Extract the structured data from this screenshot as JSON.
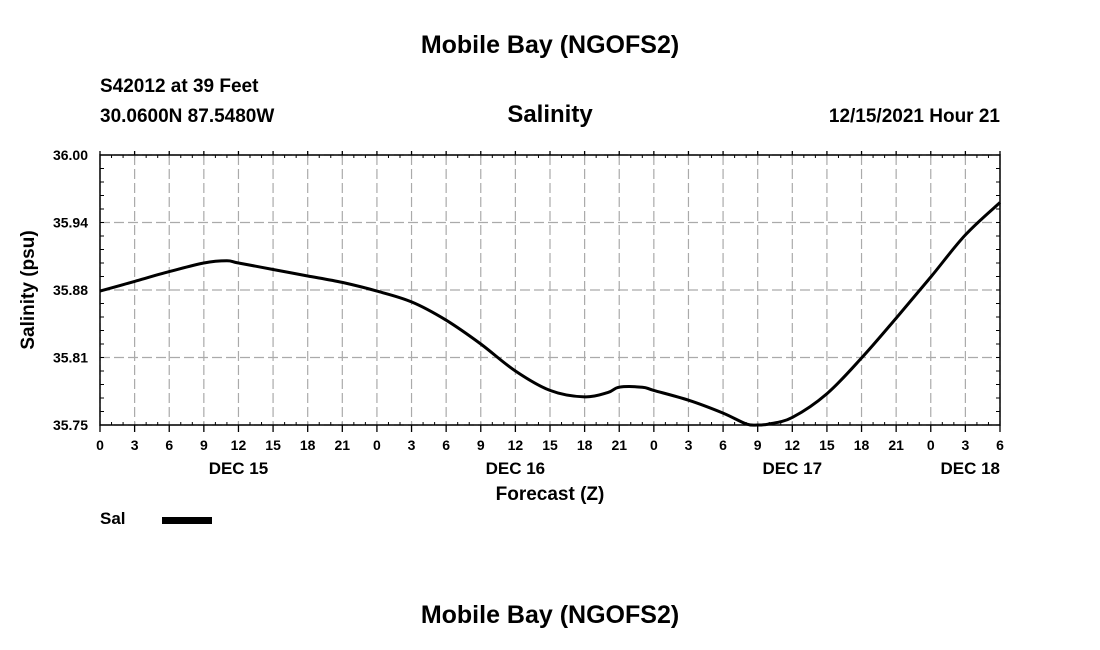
{
  "header": {
    "title": "Mobile Bay (NGOFS2)",
    "station": "S42012 at 39 Feet",
    "coords": "30.0600N  87.5480W",
    "datetime": "12/15/2021 Hour 21",
    "bottom_title": "Mobile Bay (NGOFS2)"
  },
  "legend": {
    "label": "Sal"
  },
  "chart_data": {
    "type": "line",
    "title": "Salinity",
    "xlabel": "Forecast (Z)",
    "ylabel": "Salinity (psu)",
    "ylim": [
      35.75,
      36.0
    ],
    "y_ticks": [
      "36.00",
      "35.94",
      "35.88",
      "35.81",
      "35.75"
    ],
    "x_ticks": [
      "0",
      "3",
      "6",
      "9",
      "12",
      "15",
      "18",
      "21",
      "0",
      "3",
      "6",
      "9",
      "12",
      "15",
      "18",
      "21",
      "0",
      "3",
      "6",
      "9",
      "12",
      "15",
      "18",
      "21",
      "0",
      "3",
      "6"
    ],
    "x_dates": [
      "DEC 15",
      "DEC 16",
      "DEC 17",
      "DEC 18"
    ],
    "grid": true,
    "series": [
      {
        "name": "Sal",
        "color": "#000000",
        "x_hours": [
          0,
          3,
          6,
          9,
          11,
          12,
          15,
          18,
          21,
          24,
          27,
          30,
          33,
          36,
          39,
          42,
          44,
          45,
          47,
          48,
          51,
          54,
          56,
          57,
          58,
          60,
          63,
          66,
          69,
          72,
          75,
          78
        ],
        "values": [
          35.874,
          35.883,
          35.892,
          35.9,
          35.902,
          35.9,
          35.894,
          35.888,
          35.882,
          35.874,
          35.864,
          35.847,
          35.825,
          35.8,
          35.782,
          35.776,
          35.78,
          35.785,
          35.785,
          35.782,
          35.773,
          35.761,
          35.751,
          35.75,
          35.751,
          35.757,
          35.779,
          35.812,
          35.849,
          35.887,
          35.926,
          35.956
        ]
      }
    ]
  }
}
